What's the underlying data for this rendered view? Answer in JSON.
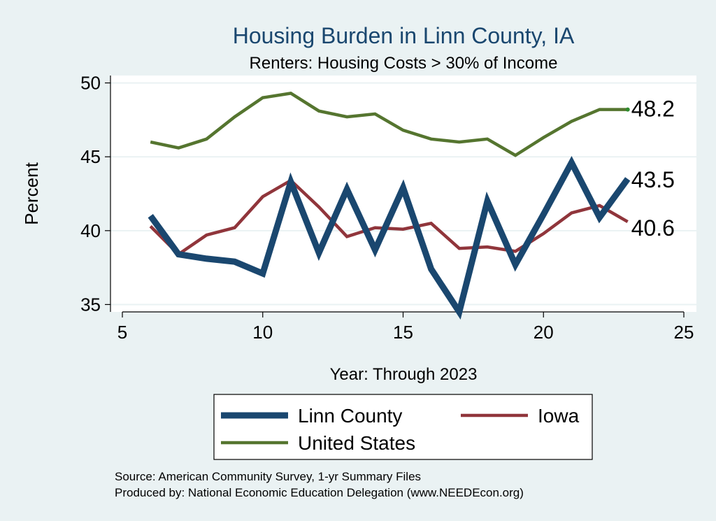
{
  "chart_data": {
    "type": "line",
    "title": "Housing Burden in Linn County, IA",
    "subtitle": "Renters: Housing Costs > 30% of Income",
    "xlabel": "Year: Through 2023",
    "ylabel": "Percent",
    "xlim": [
      5,
      25
    ],
    "ylim": [
      34.5,
      50.5
    ],
    "x_ticks": [
      "5",
      "10",
      "15",
      "20",
      "25"
    ],
    "y_ticks": [
      "35",
      "40",
      "45",
      "50"
    ],
    "grid": "horizontal",
    "legend_position": "bottom",
    "series": [
      {
        "name": "Linn County",
        "color": "#1a476f",
        "x": [
          6,
          7,
          8,
          9,
          10,
          11,
          12,
          13,
          14,
          15,
          16,
          17,
          18,
          19,
          20,
          21,
          22,
          23
        ],
        "values": [
          41.0,
          38.4,
          38.1,
          37.9,
          37.1,
          43.3,
          38.5,
          42.8,
          38.7,
          42.9,
          37.4,
          34.5,
          42.0,
          37.7,
          41.1,
          44.6,
          40.9,
          43.5
        ],
        "end_label": "43.5"
      },
      {
        "name": "Iowa",
        "color": "#90353b",
        "x": [
          6,
          7,
          8,
          9,
          10,
          11,
          12,
          13,
          14,
          15,
          16,
          17,
          18,
          19,
          20,
          21,
          22,
          23
        ],
        "values": [
          40.3,
          38.4,
          39.7,
          40.2,
          42.3,
          43.4,
          41.6,
          39.6,
          40.2,
          40.1,
          40.5,
          38.8,
          38.9,
          38.6,
          39.8,
          41.2,
          41.7,
          40.6
        ],
        "end_label": "40.6"
      },
      {
        "name": "United States",
        "color": "#55752f",
        "x": [
          6,
          7,
          8,
          9,
          10,
          11,
          12,
          13,
          14,
          15,
          16,
          17,
          18,
          19,
          20,
          21,
          22,
          23
        ],
        "values": [
          46.0,
          45.6,
          46.2,
          47.7,
          49.0,
          49.3,
          48.1,
          47.7,
          47.9,
          46.8,
          46.2,
          46.0,
          46.2,
          45.1,
          46.3,
          47.4,
          48.2,
          48.2
        ],
        "end_label": "48.2"
      }
    ]
  },
  "source_note": "Source: American Community Survey, 1-yr Summary Files",
  "producer_note": "Produced by: National Economic Education Delegation (www.NEEDEcon.org)",
  "style": {
    "background": "#eaf2f3",
    "plot_background": "#ffffff",
    "title_color": "#1a476f",
    "grid_color": "#eaf2f3",
    "axis_color": "#000000"
  }
}
